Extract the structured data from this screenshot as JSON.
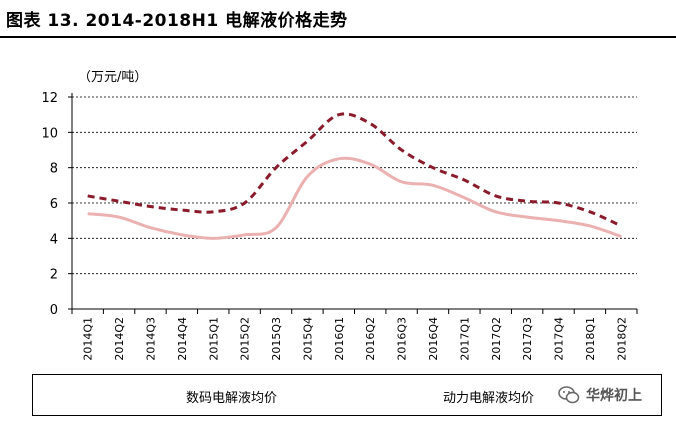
{
  "header": {
    "title": "图表 13. 2014-2018H1 电解液价格走势",
    "unit": "（万元/吨）"
  },
  "watermark": {
    "text": "华烨初上",
    "icon": "wechat-icon"
  },
  "chart_data": {
    "type": "line",
    "title": "",
    "xlabel": "",
    "ylabel": "（万元/吨）",
    "ylim": [
      0,
      12
    ],
    "yticks": [
      0,
      2,
      4,
      6,
      8,
      10,
      12
    ],
    "grid": "horizontal-dashed",
    "legend": "bottom",
    "categories": [
      "2014Q1",
      "2014Q2",
      "2014Q3",
      "2014Q4",
      "2015Q1",
      "2015Q2",
      "2015Q3",
      "2015Q4",
      "2016Q1",
      "2016Q2",
      "2016Q3",
      "2016Q4",
      "2017Q1",
      "2017Q2",
      "2017Q3",
      "2017Q4",
      "2018Q1",
      "2018Q2"
    ],
    "series": [
      {
        "name": "数码电解液均价",
        "color": "#8B1A2B",
        "style": "dashed",
        "values": [
          6.4,
          6.1,
          5.8,
          5.6,
          5.5,
          6.0,
          8.0,
          9.5,
          11.0,
          10.5,
          9.0,
          8.0,
          7.3,
          6.4,
          6.1,
          6.0,
          5.5,
          4.7
        ]
      },
      {
        "name": "动力电解液均价",
        "color": "#EBB0B0",
        "style": "solid",
        "values": [
          5.4,
          5.2,
          4.6,
          4.2,
          4.0,
          4.2,
          4.6,
          7.5,
          8.5,
          8.2,
          7.2,
          7.0,
          6.3,
          5.5,
          5.2,
          5.0,
          4.7,
          4.1
        ]
      }
    ]
  }
}
